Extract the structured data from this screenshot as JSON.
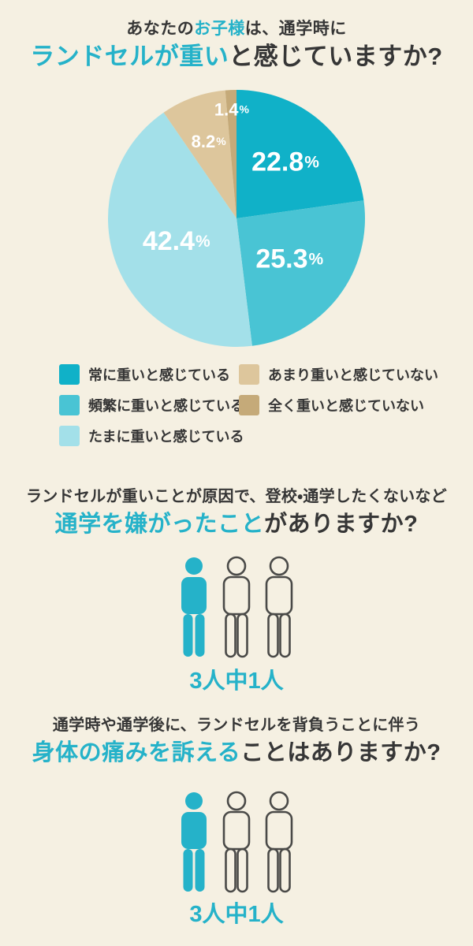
{
  "page": {
    "bg": "#f5f0e2",
    "accent": "#25b2c9",
    "text_dark": "#363636",
    "person_outline": "#4a4a48",
    "pie_label_color": "#ffffff"
  },
  "q1": {
    "line1_pre": "あなたの",
    "line1_accent": "お子様",
    "line1_post": "は、通学時に",
    "line2_accent": "ランドセルが重い",
    "line2_post": "と感じていますか?"
  },
  "chart_data": {
    "type": "pie",
    "title": "あなたのお子様は、通学時にランドセルが重いと感じていますか?",
    "categories": [
      "常に重いと感じている",
      "頻繁に重いと感じている",
      "たまに重いと感じている",
      "あまり重いと感じていない",
      "全く重いと感じていない"
    ],
    "values": [
      22.8,
      25.3,
      42.4,
      8.2,
      1.4
    ],
    "unit": "%",
    "colors": [
      "#10b1c8",
      "#49c4d4",
      "#a3e0e9",
      "#ddc69c",
      "#c5aa79"
    ],
    "start_angle_deg": -90,
    "direction": "clockwise",
    "legend_position": "below",
    "data_labels": [
      "22.8%",
      "25.3%",
      "42.4%",
      "8.2%",
      "1.4%"
    ]
  },
  "q2": {
    "line1": "ランドセルが重いことが原因で、登校・通学したくないなど",
    "line2_accent": "通学を嫌がったこと",
    "line2_post": "がありますか?",
    "result": {
      "total": 3,
      "highlighted": 1,
      "caption": "3人中1人"
    }
  },
  "q3": {
    "line1": "通学時や通学後に、ランドセルを背負うことに伴う",
    "line2_accent": "身体の痛みを訴える",
    "line2_post": "ことはありますか?",
    "result": {
      "total": 3,
      "highlighted": 1,
      "caption": "3人中1人"
    }
  }
}
